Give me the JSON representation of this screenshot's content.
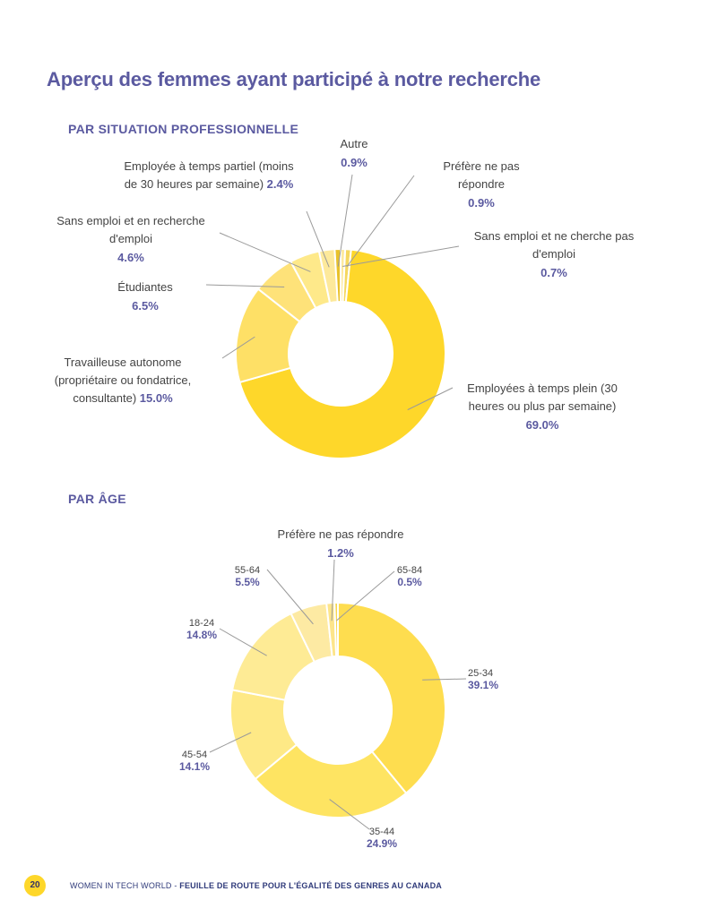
{
  "page": {
    "title": "Aperçu des femmes ayant participé à notre recherche",
    "page_number": "20",
    "footer_brand": "WOMEN IN TECH WORLD",
    "footer_separator": " - ",
    "footer_title": "FEUILLE DE ROUTE POUR L'ÉGALITÉ DES GENRES AU CANADA"
  },
  "colors": {
    "accent": "#5b5aa0",
    "leader_line": "#9a9a9a",
    "label_text": "#444444"
  },
  "chart_data": [
    {
      "type": "pie",
      "variant": "donut",
      "title": "PAR SITUATION PROFESSIONNELLE",
      "slices": [
        {
          "label": "Employées à temps plein (30 heures ou plus par semaine)",
          "value": 69.0,
          "display": "69.0%",
          "color": "#fed72a"
        },
        {
          "label": "Travailleuse autonome (propriétaire ou fondatrice, consultante)",
          "value": 15.0,
          "display": "15.0%",
          "color": "#fee066"
        },
        {
          "label": "Étudiantes",
          "value": 6.5,
          "display": "6.5%",
          "color": "#fee279"
        },
        {
          "label": "Sans emploi et en recherche d'emploi",
          "value": 4.6,
          "display": "4.6%",
          "color": "#fee98a"
        },
        {
          "label": "Employée à temps partiel (moins de 30 heures par semaine)",
          "value": 2.4,
          "display": "2.4%",
          "color": "#fde99b"
        },
        {
          "label": "Autre",
          "value": 0.9,
          "display": "0.9%",
          "color": "#e8c12a"
        },
        {
          "label": "Préfère ne pas répondre",
          "value": 0.9,
          "display": "0.9%",
          "color": "#f5d860"
        },
        {
          "label": "Sans emploi et ne cherche pas d'emploi",
          "value": 0.7,
          "display": "0.7%",
          "color": "#fdeaa0"
        }
      ],
      "legend": "none"
    },
    {
      "type": "pie",
      "variant": "donut",
      "title": "PAR ÂGE",
      "slices": [
        {
          "label": "25-34",
          "value": 39.1,
          "display": "39.1%",
          "color": "#fedd4f"
        },
        {
          "label": "35-44",
          "value": 24.9,
          "display": "24.9%",
          "color": "#fee462"
        },
        {
          "label": "45-54",
          "value": 14.1,
          "display": "14.1%",
          "color": "#fee986"
        },
        {
          "label": "18-24",
          "value": 14.8,
          "display": "14.8%",
          "color": "#feeb95"
        },
        {
          "label": "55-64",
          "value": 5.5,
          "display": "5.5%",
          "color": "#fdeaa3"
        },
        {
          "label": "Préfère ne pas répondre",
          "value": 1.2,
          "display": "1.2%",
          "color": "#fde58a"
        },
        {
          "label": "65-84",
          "value": 0.5,
          "display": "0.5%",
          "color": "#f6d650"
        }
      ],
      "legend": "none"
    }
  ]
}
